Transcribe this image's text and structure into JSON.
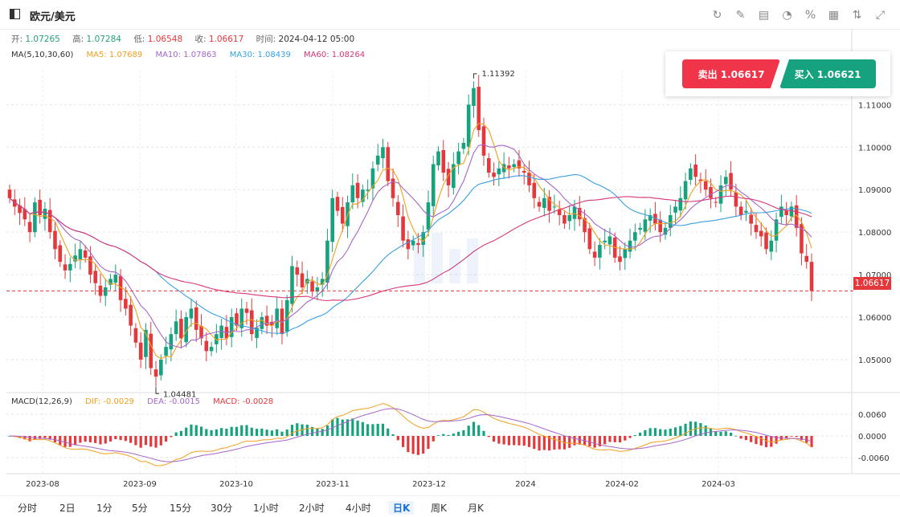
{
  "header": {
    "symbol": "欧元/美元"
  },
  "tools": [
    {
      "name": "refresh-icon",
      "glyph": "↻"
    },
    {
      "name": "draw-icon",
      "glyph": "✎"
    },
    {
      "name": "indicator-icon",
      "glyph": "▤"
    },
    {
      "name": "pie-chart-icon",
      "glyph": "◔"
    },
    {
      "name": "percent-icon",
      "glyph": "%"
    },
    {
      "name": "grid-icon",
      "glyph": "▦"
    },
    {
      "name": "compare-icon",
      "glyph": "⇅"
    },
    {
      "name": "fullscreen-icon",
      "glyph": "⤢"
    }
  ],
  "ohlc": {
    "open_label": "开:",
    "open": "1.07265",
    "high_label": "高:",
    "high": "1.07284",
    "low_label": "低:",
    "low": "1.06548",
    "close_label": "收:",
    "close": "1.06617",
    "time_label": "时间:",
    "time": "2024-04-12 05:00"
  },
  "ma": {
    "title": "MA(5,10,30,60)",
    "ma5": "MA5: 1.07689",
    "ma10": "MA10: 1.07863",
    "ma30": "MA30: 1.08439",
    "ma60": "MA60: 1.08264",
    "colors": {
      "ma5": "#f0a020",
      "ma10": "#a566c9",
      "ma30": "#3aa0e0",
      "ma60": "#d6377a"
    }
  },
  "trade": {
    "sell": "卖出 1.06617",
    "buy": "买入 1.06621"
  },
  "macd": {
    "title": "MACD(12,26,9)",
    "dif": "DIF: -0.0029",
    "dea": "DEA: -0.0015",
    "macd": "MACD: -0.0028"
  },
  "current_price": "1.06617",
  "periods": [
    "分时",
    "2日",
    "1分",
    "5分",
    "15分",
    "30分",
    "1小时",
    "2小时",
    "4小时",
    "日K",
    "周K",
    "月K"
  ],
  "active_period": "日K",
  "chart_data": {
    "type": "candlestick",
    "price_axis": {
      "min": 1.043,
      "max": 1.118,
      "ticks": [
        "1.11000",
        "1.10000",
        "1.09000",
        "1.08000",
        "1.07000",
        "1.06000",
        "1.05000"
      ]
    },
    "macd_axis": {
      "ticks": [
        "0.0060",
        "0.0000",
        "-0.0060"
      ]
    },
    "x_ticks": [
      "2023-08",
      "2023-09",
      "2023-10",
      "2023-11",
      "2023-12",
      "2024",
      "2024-02",
      "2024-03"
    ],
    "annotations": {
      "high": "1.11392",
      "low": "1.04481"
    },
    "close_series": [
      1.088,
      1.086,
      1.0845,
      1.083,
      1.08,
      1.087,
      1.084,
      1.0855,
      1.08,
      1.076,
      1.073,
      1.071,
      1.0725,
      1.0745,
      1.076,
      1.074,
      1.07,
      1.068,
      1.065,
      1.067,
      1.069,
      1.07,
      1.064,
      1.062,
      1.058,
      1.054,
      1.05,
      1.057,
      1.048,
      1.046,
      1.05,
      1.053,
      1.056,
      1.059,
      1.055,
      1.06,
      1.062,
      1.057,
      1.055,
      1.052,
      1.053,
      1.056,
      1.058,
      1.055,
      1.06,
      1.058,
      1.062,
      1.061,
      1.056,
      1.0575,
      1.06,
      1.058,
      1.058,
      1.062,
      1.056,
      1.064,
      1.072,
      1.07,
      1.067,
      1.069,
      1.066,
      1.067,
      1.069,
      1.078,
      1.088,
      1.085,
      1.082,
      1.087,
      1.091,
      1.088,
      1.09,
      1.09,
      1.095,
      1.098,
      1.1,
      1.092,
      1.088,
      1.084,
      1.078,
      1.076,
      1.078,
      1.077,
      1.08,
      1.087,
      1.096,
      1.099,
      1.094,
      1.091,
      1.096,
      1.099,
      1.101,
      1.11,
      1.1139,
      1.104,
      1.098,
      1.094,
      1.093,
      1.095,
      1.096,
      1.095,
      1.096,
      1.095,
      1.094,
      1.091,
      1.088,
      1.086,
      1.088,
      1.085,
      1.086,
      1.084,
      1.082,
      1.084,
      1.086,
      1.083,
      1.08,
      1.076,
      1.074,
      1.077,
      1.078,
      1.079,
      1.074,
      1.073,
      1.076,
      1.078,
      1.08,
      1.081,
      1.083,
      1.084,
      1.082,
      1.08,
      1.081,
      1.084,
      1.086,
      1.088,
      1.092,
      1.095,
      1.093,
      1.092,
      1.09,
      1.088,
      1.087,
      1.091,
      1.093,
      1.09,
      1.086,
      1.084,
      1.085,
      1.082,
      1.08,
      1.079,
      1.076,
      1.078,
      1.083,
      1.086,
      1.084,
      1.086,
      1.081,
      1.075,
      1.073,
      1.06617
    ],
    "series": [
      {
        "name": "MA5"
      },
      {
        "name": "MA10"
      },
      {
        "name": "MA30"
      },
      {
        "name": "MA60"
      }
    ]
  }
}
